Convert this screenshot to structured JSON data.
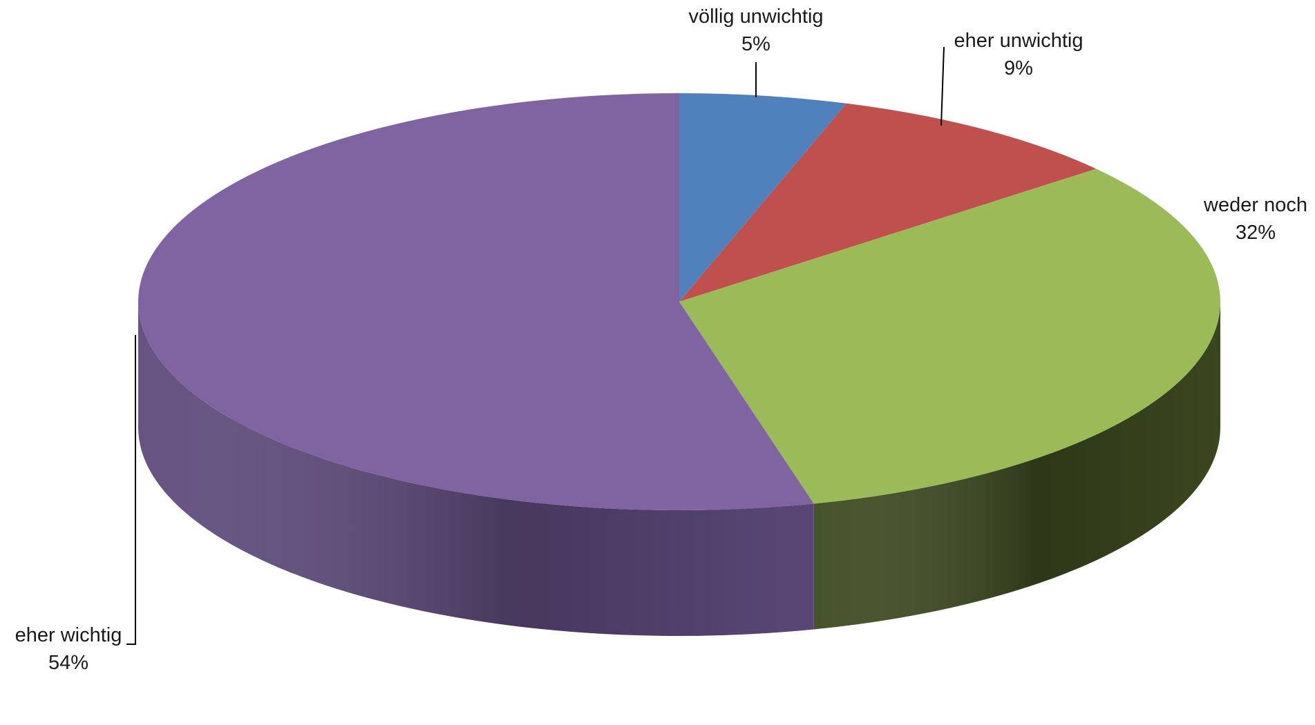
{
  "chart_data": {
    "type": "pie",
    "style": "3d",
    "categories": [
      "völlig unwichtig",
      "eher unwichtig",
      "weder noch",
      "eher wichtig"
    ],
    "values": [
      5,
      9,
      32,
      54
    ],
    "value_labels": [
      "5%",
      "9%",
      "32%",
      "54%"
    ],
    "colors": [
      "#4f81bd",
      "#c0504d",
      "#9bbb59",
      "#8064a2"
    ],
    "side_colors": [
      "#2c4a6e",
      "#6e2e2c",
      "#3c4a20",
      "#5e4a7c"
    ],
    "title": "",
    "legend": "none"
  }
}
